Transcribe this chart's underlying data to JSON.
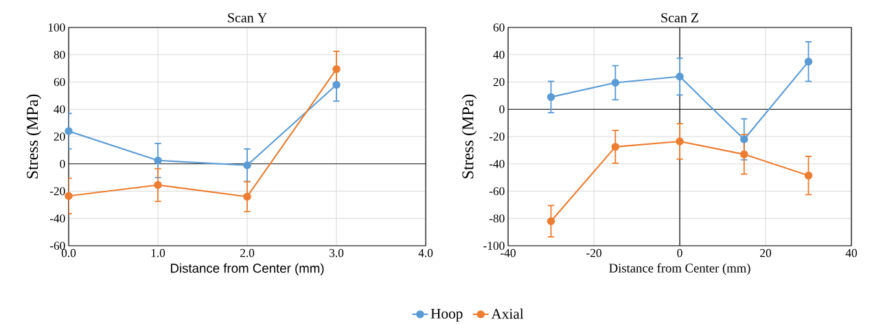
{
  "chart_data": [
    {
      "type": "line",
      "title": "Scan Y",
      "xlabel": "Distance from Center (mm)",
      "ylabel": "Stress (MPa)",
      "x": [
        0,
        1,
        2,
        3
      ],
      "xlim": [
        0,
        4
      ],
      "xticks": [
        {
          "value": 0,
          "label": "0.0"
        },
        {
          "value": 1,
          "label": "1.0"
        },
        {
          "value": 2,
          "label": "2.0"
        },
        {
          "value": 3,
          "label": "3.0"
        },
        {
          "value": 4,
          "label": "4.0"
        }
      ],
      "ylim": [
        -60,
        100
      ],
      "yticks": [
        -60,
        -40,
        -20,
        0,
        20,
        40,
        60,
        80,
        100
      ],
      "grid": true,
      "marker": "circle",
      "legend": "bottom",
      "series": [
        {
          "name": "Hoop",
          "color": "#5b9bd5",
          "values": [
            24,
            2.5,
            -1,
            58
          ],
          "errors": [
            13,
            12.5,
            12,
            12
          ]
        },
        {
          "name": "Axial",
          "color": "#ed7d31",
          "values": [
            -23.5,
            -15.5,
            -24,
            69.5
          ],
          "errors": [
            13,
            12,
            11,
            13
          ]
        }
      ]
    },
    {
      "type": "line",
      "title": "Scan Z",
      "xlabel": "Distance from Center (mm)",
      "ylabel": "Stress (MPa)",
      "x": [
        -30,
        -15,
        0,
        15,
        30
      ],
      "xlim": [
        -40,
        40
      ],
      "xticks": [
        -40,
        -20,
        0,
        20,
        40
      ],
      "ylim": [
        -100,
        60
      ],
      "yticks": [
        -100,
        -80,
        -60,
        -40,
        -20,
        0,
        20,
        40,
        60
      ],
      "grid": true,
      "marker": "circle",
      "series": [
        {
          "color": "#5b9bd5",
          "values": [
            9,
            19.5,
            24,
            -22,
            35
          ],
          "errors": [
            11.5,
            12.5,
            13.5,
            15,
            14.5
          ]
        },
        {
          "color": "#ed7d31",
          "values": [
            -82,
            -27.5,
            -23.5,
            -33,
            -48.5
          ],
          "errors": [
            11.5,
            12,
            13,
            14.5,
            14
          ]
        }
      ]
    }
  ]
}
